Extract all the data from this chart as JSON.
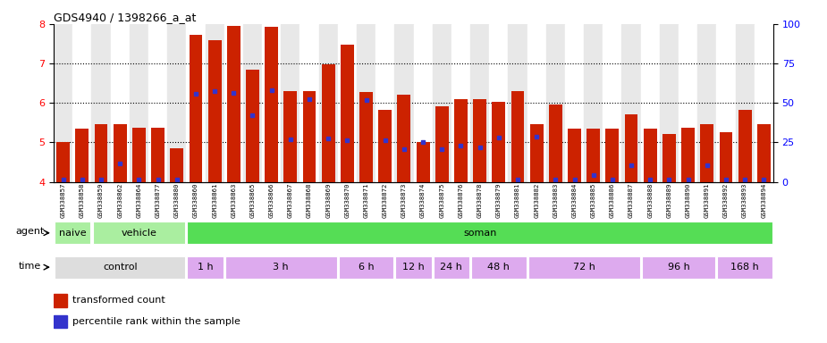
{
  "title": "GDS4940 / 1398266_a_at",
  "samples": [
    "GSM338857",
    "GSM338858",
    "GSM338859",
    "GSM338862",
    "GSM338864",
    "GSM338877",
    "GSM338880",
    "GSM338860",
    "GSM338861",
    "GSM338863",
    "GSM338865",
    "GSM338866",
    "GSM338867",
    "GSM338868",
    "GSM338869",
    "GSM338870",
    "GSM338871",
    "GSM338872",
    "GSM338873",
    "GSM338874",
    "GSM338875",
    "GSM338876",
    "GSM338878",
    "GSM338879",
    "GSM338881",
    "GSM338882",
    "GSM338883",
    "GSM338884",
    "GSM338885",
    "GSM338886",
    "GSM338887",
    "GSM338888",
    "GSM338889",
    "GSM338890",
    "GSM338891",
    "GSM338892",
    "GSM338893",
    "GSM338894"
  ],
  "bar_values": [
    5.0,
    5.35,
    5.45,
    5.45,
    5.38,
    5.38,
    4.85,
    7.72,
    7.58,
    7.95,
    6.85,
    7.93,
    6.3,
    6.3,
    6.97,
    7.48,
    6.28,
    5.82,
    6.2,
    5.01,
    5.92,
    6.1,
    6.1,
    6.02,
    6.3,
    5.45,
    5.97,
    5.35,
    5.35,
    5.35,
    5.7,
    5.35,
    5.22,
    5.38,
    5.45,
    5.25,
    5.83,
    5.45
  ],
  "percentile_values": [
    4.05,
    4.05,
    4.05,
    4.47,
    4.05,
    4.05,
    4.05,
    6.22,
    6.3,
    6.25,
    5.68,
    6.33,
    5.08,
    6.1,
    5.1,
    5.05,
    6.07,
    5.05,
    4.82,
    5.01,
    4.82,
    4.92,
    4.88,
    5.12,
    4.05,
    5.15,
    4.05,
    4.05,
    4.18,
    4.05,
    4.42,
    4.05,
    4.05,
    4.05,
    4.42,
    4.05,
    4.05,
    4.05
  ],
  "ymin": 4.0,
  "ymax": 8.0,
  "yticks": [
    4,
    5,
    6,
    7,
    8
  ],
  "right_yticks": [
    0,
    25,
    50,
    75,
    100
  ],
  "bar_color": "#cc2200",
  "percentile_color": "#3333cc",
  "col_even_color": "#e8e8e8",
  "col_odd_color": "#ffffff",
  "agent_groups": [
    {
      "label": "naive",
      "start": 0,
      "end": 2,
      "color": "#aaeea0"
    },
    {
      "label": "vehicle",
      "start": 2,
      "end": 7,
      "color": "#aaeea0"
    },
    {
      "label": "soman",
      "start": 7,
      "end": 38,
      "color": "#55dd55"
    }
  ],
  "time_control_color": "#dddddd",
  "time_soman_color": "#ddaaee",
  "time_groups": [
    {
      "label": "control",
      "start": 0,
      "end": 7,
      "color": "#dddddd"
    },
    {
      "label": "1 h",
      "start": 7,
      "end": 9,
      "color": "#ddaaee"
    },
    {
      "label": "3 h",
      "start": 9,
      "end": 15,
      "color": "#ddaaee"
    },
    {
      "label": "6 h",
      "start": 15,
      "end": 18,
      "color": "#ddaaee"
    },
    {
      "label": "12 h",
      "start": 18,
      "end": 20,
      "color": "#ddaaee"
    },
    {
      "label": "24 h",
      "start": 20,
      "end": 22,
      "color": "#ddaaee"
    },
    {
      "label": "48 h",
      "start": 22,
      "end": 25,
      "color": "#ddaaee"
    },
    {
      "label": "72 h",
      "start": 25,
      "end": 31,
      "color": "#ddaaee"
    },
    {
      "label": "96 h",
      "start": 31,
      "end": 35,
      "color": "#ddaaee"
    },
    {
      "label": "168 h",
      "start": 35,
      "end": 38,
      "color": "#ddaaee"
    }
  ]
}
